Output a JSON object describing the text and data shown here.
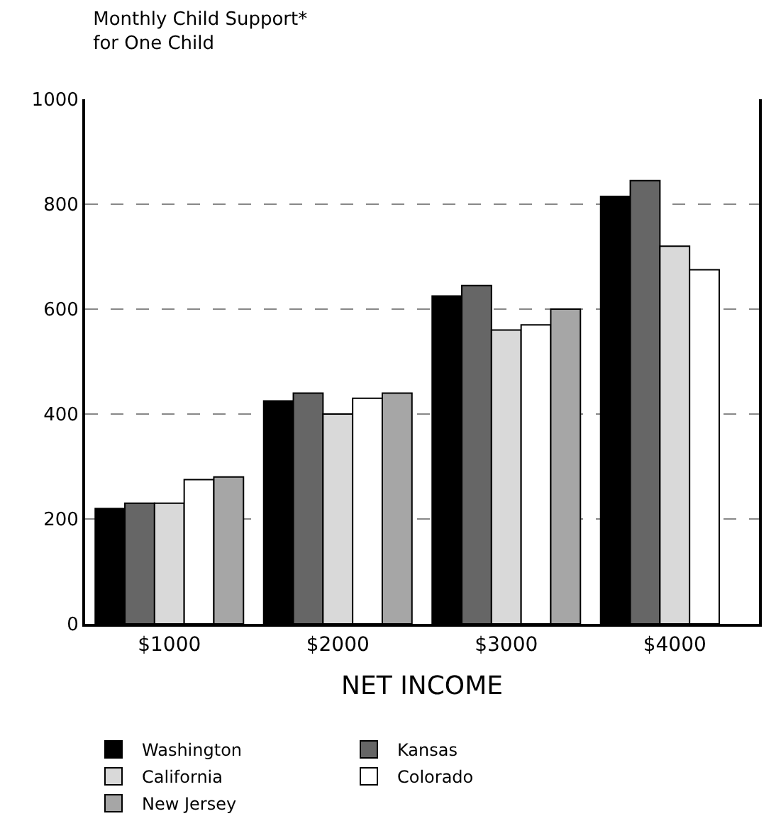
{
  "chart_data": {
    "type": "bar",
    "title": "Monthly Child Support*\nfor One Child",
    "xlabel": "NET INCOME",
    "categories": [
      "$1000",
      "$2000",
      "$3000",
      "$4000"
    ],
    "series": [
      {
        "name": "Washington",
        "color": "#000000",
        "values": [
          220,
          425,
          625,
          815
        ]
      },
      {
        "name": "Kansas",
        "color": "#666666",
        "values": [
          230,
          440,
          645,
          845
        ]
      },
      {
        "name": "California",
        "color": "#d9d9d9",
        "values": [
          230,
          400,
          560,
          720
        ]
      },
      {
        "name": "Colorado",
        "color": "#ffffff",
        "values": [
          275,
          430,
          570,
          675
        ]
      },
      {
        "name": "New Jersey",
        "color": "#a6a6a6",
        "values": [
          280,
          440,
          600,
          null
        ]
      }
    ],
    "ylim": [
      0,
      1000
    ],
    "yticks": [
      0,
      200,
      400,
      600,
      800,
      1000
    ],
    "grid": "y",
    "legend": "bottom"
  }
}
